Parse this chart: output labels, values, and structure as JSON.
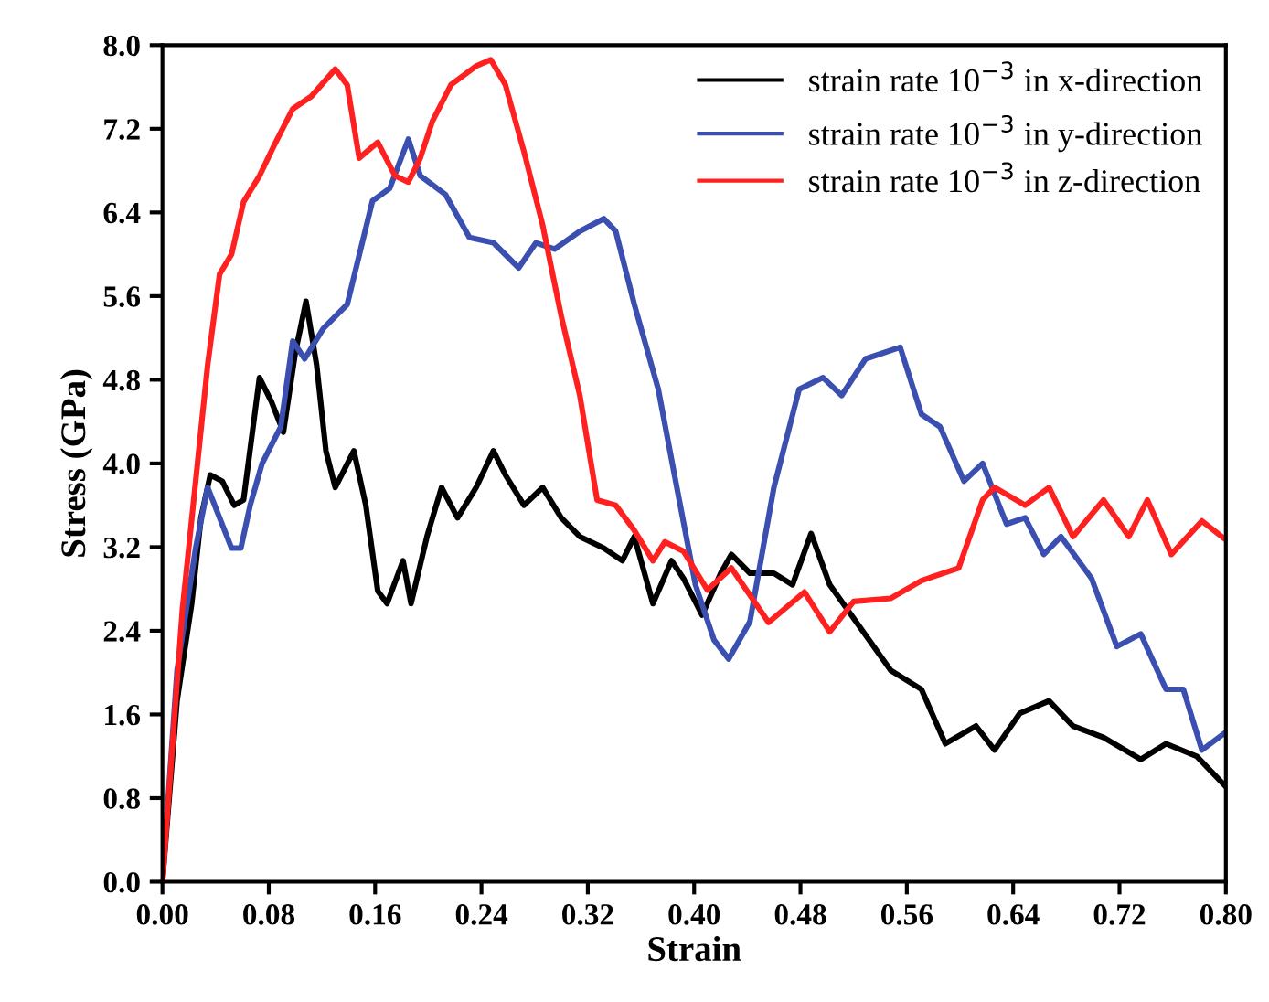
{
  "chart_data": {
    "type": "line",
    "xlabel": "Strain",
    "ylabel": "Stress (GPa)",
    "xlim": [
      0,
      0.8
    ],
    "ylim": [
      0,
      8.0
    ],
    "xticks": [
      {
        "value": 0,
        "label": "0.00"
      },
      {
        "value": 0.08,
        "label": "0.08"
      },
      {
        "value": 0.16,
        "label": "0.16"
      },
      {
        "value": 0.24,
        "label": "0.24"
      },
      {
        "value": 0.32,
        "label": "0.32"
      },
      {
        "value": 0.4,
        "label": "0.40"
      },
      {
        "value": 0.48,
        "label": "0.48"
      },
      {
        "value": 0.56,
        "label": "0.56"
      },
      {
        "value": 0.64,
        "label": "0.64"
      },
      {
        "value": 0.72,
        "label": "0.72"
      },
      {
        "value": 0.8,
        "label": "0.80"
      }
    ],
    "yticks": [
      {
        "value": 0,
        "label": "0.0"
      },
      {
        "value": 0.8,
        "label": "0.8"
      },
      {
        "value": 1.6,
        "label": "1.6"
      },
      {
        "value": 2.4,
        "label": "2.4"
      },
      {
        "value": 3.2,
        "label": "3.2"
      },
      {
        "value": 4.0,
        "label": "4.0"
      },
      {
        "value": 4.8,
        "label": "4.8"
      },
      {
        "value": 5.6,
        "label": "5.6"
      },
      {
        "value": 6.4,
        "label": "6.4"
      },
      {
        "value": 7.2,
        "label": "7.2"
      },
      {
        "value": 8.0,
        "label": "8.0"
      }
    ],
    "grid": false,
    "legend": "top right",
    "line_style": "solid",
    "series": [
      {
        "name": "strain rate 10$^{−3}$ in x-direction",
        "color": "#000000",
        "x": [
          0,
          0.011,
          0.022,
          0.029,
          0.036,
          0.045,
          0.054,
          0.061,
          0.073,
          0.082,
          0.091,
          0.1,
          0.108,
          0.116,
          0.123,
          0.13,
          0.144,
          0.153,
          0.162,
          0.169,
          0.181,
          0.187,
          0.199,
          0.21,
          0.222,
          0.236,
          0.249,
          0.258,
          0.272,
          0.286,
          0.3,
          0.314,
          0.332,
          0.346,
          0.355,
          0.369,
          0.383,
          0.392,
          0.406,
          0.42,
          0.428,
          0.442,
          0.46,
          0.474,
          0.488,
          0.502,
          0.525,
          0.548,
          0.571,
          0.589,
          0.612,
          0.626,
          0.645,
          0.667,
          0.685,
          0.708,
          0.736,
          0.755,
          0.778,
          0.8
        ],
        "values": [
          0,
          1.73,
          2.66,
          3.48,
          3.89,
          3.83,
          3.6,
          3.65,
          4.82,
          4.59,
          4.3,
          5.06,
          5.55,
          4.94,
          4.12,
          3.77,
          4.12,
          3.6,
          2.78,
          2.66,
          3.07,
          2.66,
          3.3,
          3.77,
          3.48,
          3.77,
          4.12,
          3.89,
          3.6,
          3.77,
          3.48,
          3.3,
          3.19,
          3.07,
          3.3,
          2.66,
          3.07,
          2.9,
          2.55,
          2.95,
          3.13,
          2.95,
          2.95,
          2.84,
          3.33,
          2.84,
          2.43,
          2.02,
          1.84,
          1.32,
          1.49,
          1.26,
          1.61,
          1.73,
          1.49,
          1.38,
          1.17,
          1.32,
          1.2,
          0.91
        ]
      },
      {
        "name": "strain rate 10$^{−3}$ in y-direction",
        "color": "#3a4fb0",
        "x": [
          0,
          0.011,
          0.025,
          0.034,
          0.043,
          0.052,
          0.059,
          0.066,
          0.075,
          0.089,
          0.098,
          0.107,
          0.121,
          0.139,
          0.148,
          0.158,
          0.171,
          0.185,
          0.194,
          0.213,
          0.231,
          0.249,
          0.268,
          0.281,
          0.295,
          0.314,
          0.332,
          0.341,
          0.355,
          0.373,
          0.387,
          0.401,
          0.415,
          0.426,
          0.442,
          0.46,
          0.479,
          0.497,
          0.511,
          0.529,
          0.555,
          0.571,
          0.585,
          0.603,
          0.617,
          0.635,
          0.649,
          0.663,
          0.676,
          0.699,
          0.718,
          0.736,
          0.755,
          0.768,
          0.782,
          0.8
        ],
        "values": [
          0,
          2.02,
          3.19,
          3.77,
          3.48,
          3.19,
          3.19,
          3.6,
          4.0,
          4.35,
          5.17,
          5.0,
          5.29,
          5.52,
          5.99,
          6.51,
          6.63,
          7.1,
          6.75,
          6.57,
          6.16,
          6.11,
          5.87,
          6.11,
          6.05,
          6.22,
          6.34,
          6.22,
          5.52,
          4.71,
          3.77,
          2.84,
          2.31,
          2.13,
          2.49,
          3.77,
          4.71,
          4.82,
          4.65,
          5.0,
          5.11,
          4.47,
          4.35,
          3.83,
          4.0,
          3.42,
          3.48,
          3.13,
          3.3,
          2.9,
          2.25,
          2.37,
          1.84,
          1.84,
          1.26,
          1.43
        ]
      },
      {
        "name": "strain rate 10$^{−3}$ in z-direction",
        "color": "#ff2020",
        "x": [
          0,
          0.015,
          0.034,
          0.043,
          0.052,
          0.061,
          0.073,
          0.084,
          0.098,
          0.112,
          0.13,
          0.139,
          0.148,
          0.162,
          0.175,
          0.185,
          0.194,
          0.203,
          0.217,
          0.236,
          0.247,
          0.258,
          0.272,
          0.286,
          0.3,
          0.314,
          0.327,
          0.341,
          0.355,
          0.369,
          0.378,
          0.392,
          0.41,
          0.428,
          0.456,
          0.483,
          0.502,
          0.52,
          0.548,
          0.571,
          0.599,
          0.617,
          0.626,
          0.649,
          0.667,
          0.685,
          0.708,
          0.727,
          0.741,
          0.759,
          0.782,
          0.8
        ],
        "values": [
          0,
          2.6,
          4.94,
          5.81,
          6.0,
          6.5,
          6.75,
          7.04,
          7.39,
          7.51,
          7.77,
          7.62,
          6.92,
          7.07,
          6.75,
          6.69,
          6.92,
          7.27,
          7.62,
          7.8,
          7.86,
          7.62,
          6.98,
          6.28,
          5.41,
          4.65,
          3.65,
          3.6,
          3.36,
          3.07,
          3.25,
          3.16,
          2.79,
          3.0,
          2.48,
          2.77,
          2.39,
          2.68,
          2.71,
          2.88,
          3.0,
          3.65,
          3.77,
          3.6,
          3.77,
          3.3,
          3.65,
          3.3,
          3.65,
          3.13,
          3.45,
          3.27
        ]
      }
    ]
  }
}
